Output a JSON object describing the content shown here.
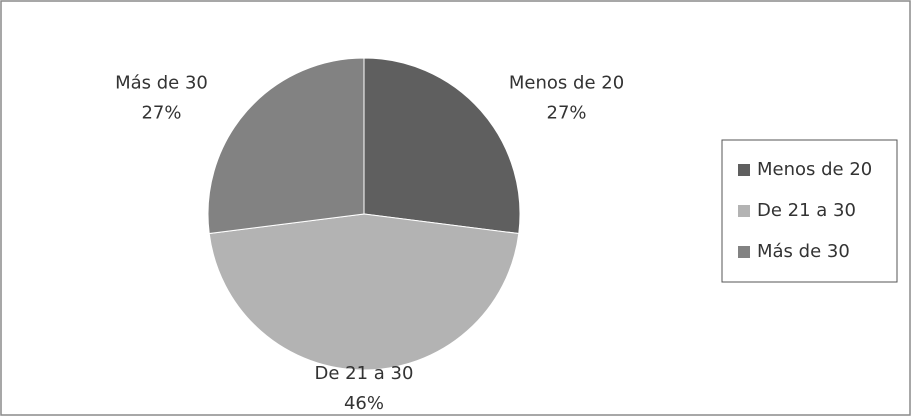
{
  "chart_data": {
    "type": "pie",
    "categories": [
      "Menos de 20",
      "De 21 a 30",
      "Más de 30"
    ],
    "values": [
      27,
      46,
      27
    ],
    "value_labels": [
      "27%",
      "46%",
      "27%"
    ],
    "colors": [
      "#5f5f5f",
      "#b3b3b3",
      "#828282"
    ],
    "legend": "right"
  }
}
